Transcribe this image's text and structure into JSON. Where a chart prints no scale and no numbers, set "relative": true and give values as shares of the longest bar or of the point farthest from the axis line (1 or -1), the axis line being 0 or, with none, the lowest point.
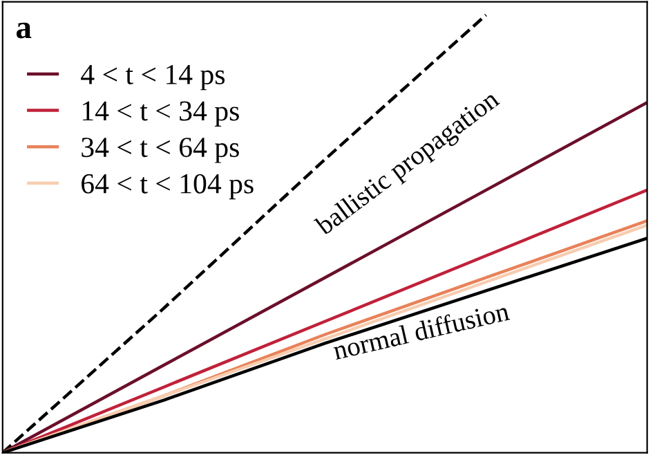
{
  "chart_data": {
    "type": "line",
    "relative": true,
    "categories": [
      null,
      null,
      null,
      null,
      null
    ],
    "series": [
      {
        "color": "#000000",
        "line_style": "dashed",
        "values": [
          0,
          0.33,
          0.67,
          1,
          null
        ]
      },
      {
        "name": "4 < t < 14 ps",
        "color": "#6b0f2a",
        "values": [
          0,
          0.2,
          0.4,
          0.6,
          0.8
        ]
      },
      {
        "name": "14 < t < 34 ps",
        "color": "#c0213a",
        "values": [
          0,
          0.15,
          0.3,
          0.45,
          0.6
        ]
      },
      {
        "name": "34 < t < 64 ps",
        "color": "#e8825a",
        "values": [
          0,
          0.13,
          0.27,
          0.4,
          0.53
        ]
      },
      {
        "name": "64 < t < 104 ps",
        "color": "#f7cdb0",
        "values": [
          0,
          0.13,
          0.26,
          0.39,
          0.52
        ]
      },
      {
        "color": "#000000",
        "values": [
          0,
          0.12,
          0.25,
          0.37,
          0.49
        ]
      }
    ],
    "annotations": [
      "a",
      "ballistic propagation",
      "normal diffusion"
    ],
    "legend": "top left",
    "marker": "none",
    "line_style": "solid"
  }
}
